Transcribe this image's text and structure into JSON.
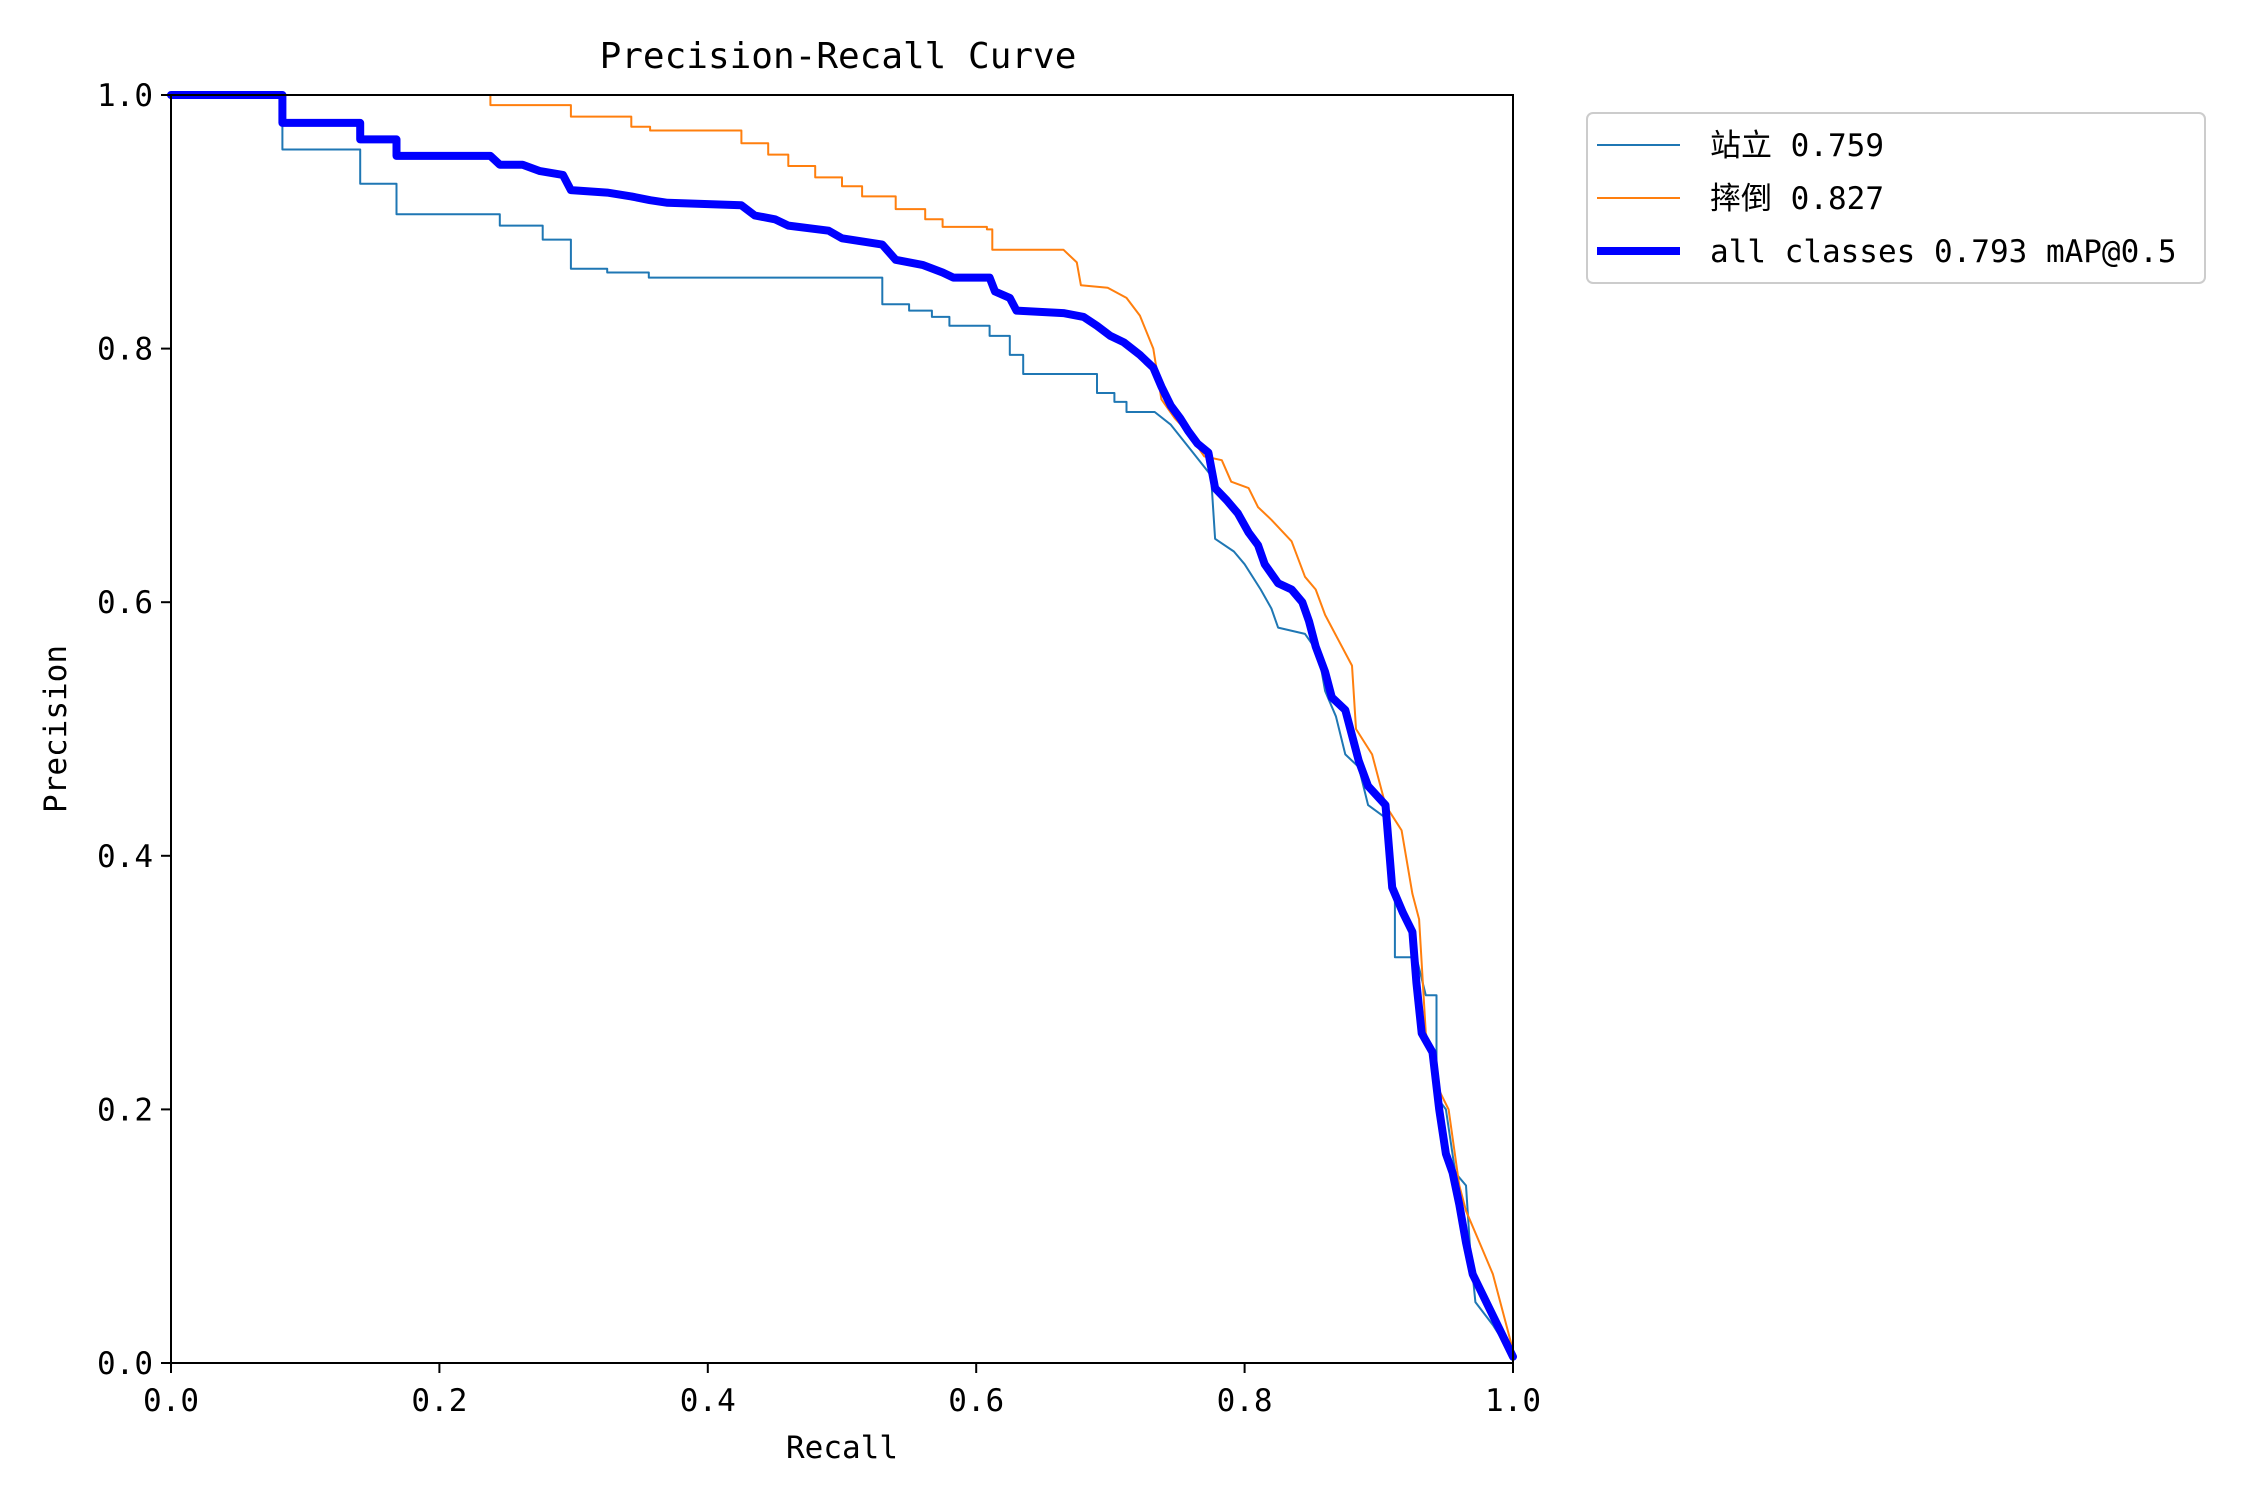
{
  "chart_data": {
    "type": "line",
    "title": "Precision-Recall Curve",
    "xlabel": "Recall",
    "ylabel": "Precision",
    "xlim": [
      0,
      1
    ],
    "ylim": [
      0,
      1
    ],
    "x_ticks": [
      "0.0",
      "0.2",
      "0.4",
      "0.6",
      "0.8",
      "1.0"
    ],
    "y_ticks": [
      "0.0",
      "0.2",
      "0.4",
      "0.6",
      "0.8",
      "1.0"
    ],
    "grid": false,
    "legend_position": "outside-top-right",
    "series": [
      {
        "name": "站立 0.759",
        "color": "#1f77b4",
        "line_weight": "thin",
        "points": [
          [
            0,
            1.0
          ],
          [
            0.083,
            1.0
          ],
          [
            0.083,
            0.957
          ],
          [
            0.141,
            0.957
          ],
          [
            0.141,
            0.93
          ],
          [
            0.168,
            0.93
          ],
          [
            0.168,
            0.906
          ],
          [
            0.245,
            0.906
          ],
          [
            0.245,
            0.897
          ],
          [
            0.277,
            0.897
          ],
          [
            0.277,
            0.886
          ],
          [
            0.298,
            0.886
          ],
          [
            0.298,
            0.863
          ],
          [
            0.325,
            0.863
          ],
          [
            0.325,
            0.86
          ],
          [
            0.356,
            0.86
          ],
          [
            0.356,
            0.856
          ],
          [
            0.53,
            0.856
          ],
          [
            0.53,
            0.835
          ],
          [
            0.55,
            0.835
          ],
          [
            0.55,
            0.83
          ],
          [
            0.567,
            0.83
          ],
          [
            0.567,
            0.825
          ],
          [
            0.58,
            0.825
          ],
          [
            0.58,
            0.818
          ],
          [
            0.61,
            0.818
          ],
          [
            0.61,
            0.81
          ],
          [
            0.625,
            0.81
          ],
          [
            0.625,
            0.795
          ],
          [
            0.635,
            0.795
          ],
          [
            0.635,
            0.78
          ],
          [
            0.69,
            0.78
          ],
          [
            0.69,
            0.765
          ],
          [
            0.703,
            0.765
          ],
          [
            0.703,
            0.758
          ],
          [
            0.712,
            0.758
          ],
          [
            0.712,
            0.75
          ],
          [
            0.733,
            0.75
          ],
          [
            0.745,
            0.74
          ],
          [
            0.76,
            0.72
          ],
          [
            0.775,
            0.7
          ],
          [
            0.778,
            0.65
          ],
          [
            0.792,
            0.64
          ],
          [
            0.8,
            0.63
          ],
          [
            0.812,
            0.61
          ],
          [
            0.82,
            0.595
          ],
          [
            0.825,
            0.58
          ],
          [
            0.845,
            0.575
          ],
          [
            0.855,
            0.56
          ],
          [
            0.86,
            0.53
          ],
          [
            0.868,
            0.51
          ],
          [
            0.875,
            0.48
          ],
          [
            0.885,
            0.47
          ],
          [
            0.892,
            0.44
          ],
          [
            0.905,
            0.43
          ],
          [
            0.912,
            0.37
          ],
          [
            0.912,
            0.32
          ],
          [
            0.928,
            0.32
          ],
          [
            0.935,
            0.29
          ],
          [
            0.943,
            0.29
          ],
          [
            0.943,
            0.21
          ],
          [
            0.95,
            0.2
          ],
          [
            0.957,
            0.15
          ],
          [
            0.965,
            0.14
          ],
          [
            0.968,
            0.09
          ],
          [
            0.972,
            0.048
          ],
          [
            0.985,
            0.03
          ],
          [
            1.0,
            0.005
          ]
        ]
      },
      {
        "name": "摔倒 0.827",
        "color": "#ff7f0e",
        "line_weight": "thin",
        "points": [
          [
            0,
            1.0
          ],
          [
            0.238,
            1.0
          ],
          [
            0.238,
            0.992
          ],
          [
            0.298,
            0.992
          ],
          [
            0.298,
            0.983
          ],
          [
            0.343,
            0.983
          ],
          [
            0.343,
            0.975
          ],
          [
            0.357,
            0.975
          ],
          [
            0.357,
            0.972
          ],
          [
            0.425,
            0.972
          ],
          [
            0.425,
            0.962
          ],
          [
            0.445,
            0.962
          ],
          [
            0.445,
            0.953
          ],
          [
            0.46,
            0.953
          ],
          [
            0.46,
            0.944
          ],
          [
            0.48,
            0.944
          ],
          [
            0.48,
            0.935
          ],
          [
            0.5,
            0.935
          ],
          [
            0.5,
            0.928
          ],
          [
            0.515,
            0.928
          ],
          [
            0.515,
            0.92
          ],
          [
            0.54,
            0.92
          ],
          [
            0.54,
            0.91
          ],
          [
            0.562,
            0.91
          ],
          [
            0.562,
            0.902
          ],
          [
            0.575,
            0.902
          ],
          [
            0.575,
            0.896
          ],
          [
            0.608,
            0.896
          ],
          [
            0.608,
            0.894
          ],
          [
            0.612,
            0.894
          ],
          [
            0.612,
            0.878
          ],
          [
            0.665,
            0.878
          ],
          [
            0.675,
            0.868
          ],
          [
            0.678,
            0.85
          ],
          [
            0.698,
            0.848
          ],
          [
            0.712,
            0.84
          ],
          [
            0.722,
            0.826
          ],
          [
            0.732,
            0.8
          ],
          [
            0.738,
            0.76
          ],
          [
            0.748,
            0.745
          ],
          [
            0.757,
            0.735
          ],
          [
            0.77,
            0.715
          ],
          [
            0.783,
            0.712
          ],
          [
            0.79,
            0.695
          ],
          [
            0.803,
            0.69
          ],
          [
            0.81,
            0.675
          ],
          [
            0.82,
            0.665
          ],
          [
            0.835,
            0.648
          ],
          [
            0.845,
            0.62
          ],
          [
            0.853,
            0.61
          ],
          [
            0.86,
            0.59
          ],
          [
            0.87,
            0.57
          ],
          [
            0.88,
            0.55
          ],
          [
            0.883,
            0.5
          ],
          [
            0.895,
            0.48
          ],
          [
            0.905,
            0.44
          ],
          [
            0.917,
            0.42
          ],
          [
            0.925,
            0.37
          ],
          [
            0.93,
            0.35
          ],
          [
            0.935,
            0.26
          ],
          [
            0.94,
            0.24
          ],
          [
            0.945,
            0.215
          ],
          [
            0.952,
            0.2
          ],
          [
            0.96,
            0.14
          ],
          [
            0.965,
            0.12
          ],
          [
            0.975,
            0.095
          ],
          [
            0.985,
            0.07
          ],
          [
            1.0,
            0.01
          ]
        ]
      },
      {
        "name": "all classes 0.793 mAP@0.5",
        "color": "#0000ff",
        "line_weight": "thick",
        "points": [
          [
            0,
            1.0
          ],
          [
            0.083,
            1.0
          ],
          [
            0.083,
            0.978
          ],
          [
            0.141,
            0.978
          ],
          [
            0.141,
            0.965
          ],
          [
            0.168,
            0.965
          ],
          [
            0.168,
            0.952
          ],
          [
            0.238,
            0.952
          ],
          [
            0.245,
            0.945
          ],
          [
            0.262,
            0.945
          ],
          [
            0.275,
            0.94
          ],
          [
            0.292,
            0.937
          ],
          [
            0.298,
            0.925
          ],
          [
            0.325,
            0.923
          ],
          [
            0.343,
            0.92
          ],
          [
            0.357,
            0.917
          ],
          [
            0.37,
            0.915
          ],
          [
            0.425,
            0.913
          ],
          [
            0.435,
            0.905
          ],
          [
            0.45,
            0.902
          ],
          [
            0.46,
            0.897
          ],
          [
            0.49,
            0.893
          ],
          [
            0.5,
            0.887
          ],
          [
            0.53,
            0.882
          ],
          [
            0.54,
            0.87
          ],
          [
            0.56,
            0.866
          ],
          [
            0.575,
            0.86
          ],
          [
            0.583,
            0.856
          ],
          [
            0.61,
            0.856
          ],
          [
            0.614,
            0.845
          ],
          [
            0.625,
            0.84
          ],
          [
            0.63,
            0.83
          ],
          [
            0.665,
            0.828
          ],
          [
            0.68,
            0.825
          ],
          [
            0.69,
            0.818
          ],
          [
            0.7,
            0.81
          ],
          [
            0.71,
            0.805
          ],
          [
            0.722,
            0.795
          ],
          [
            0.732,
            0.785
          ],
          [
            0.738,
            0.77
          ],
          [
            0.745,
            0.755
          ],
          [
            0.752,
            0.745
          ],
          [
            0.758,
            0.735
          ],
          [
            0.765,
            0.725
          ],
          [
            0.773,
            0.718
          ],
          [
            0.778,
            0.69
          ],
          [
            0.787,
            0.68
          ],
          [
            0.795,
            0.67
          ],
          [
            0.803,
            0.655
          ],
          [
            0.81,
            0.645
          ],
          [
            0.815,
            0.63
          ],
          [
            0.825,
            0.615
          ],
          [
            0.835,
            0.61
          ],
          [
            0.843,
            0.6
          ],
          [
            0.848,
            0.585
          ],
          [
            0.853,
            0.565
          ],
          [
            0.86,
            0.545
          ],
          [
            0.865,
            0.525
          ],
          [
            0.875,
            0.515
          ],
          [
            0.88,
            0.495
          ],
          [
            0.885,
            0.475
          ],
          [
            0.892,
            0.455
          ],
          [
            0.905,
            0.44
          ],
          [
            0.91,
            0.375
          ],
          [
            0.918,
            0.355
          ],
          [
            0.925,
            0.34
          ],
          [
            0.928,
            0.3
          ],
          [
            0.932,
            0.26
          ],
          [
            0.94,
            0.245
          ],
          [
            0.945,
            0.2
          ],
          [
            0.95,
            0.165
          ],
          [
            0.955,
            0.15
          ],
          [
            0.96,
            0.125
          ],
          [
            0.965,
            0.095
          ],
          [
            0.97,
            0.07
          ],
          [
            1.0,
            0.005
          ]
        ]
      }
    ]
  }
}
